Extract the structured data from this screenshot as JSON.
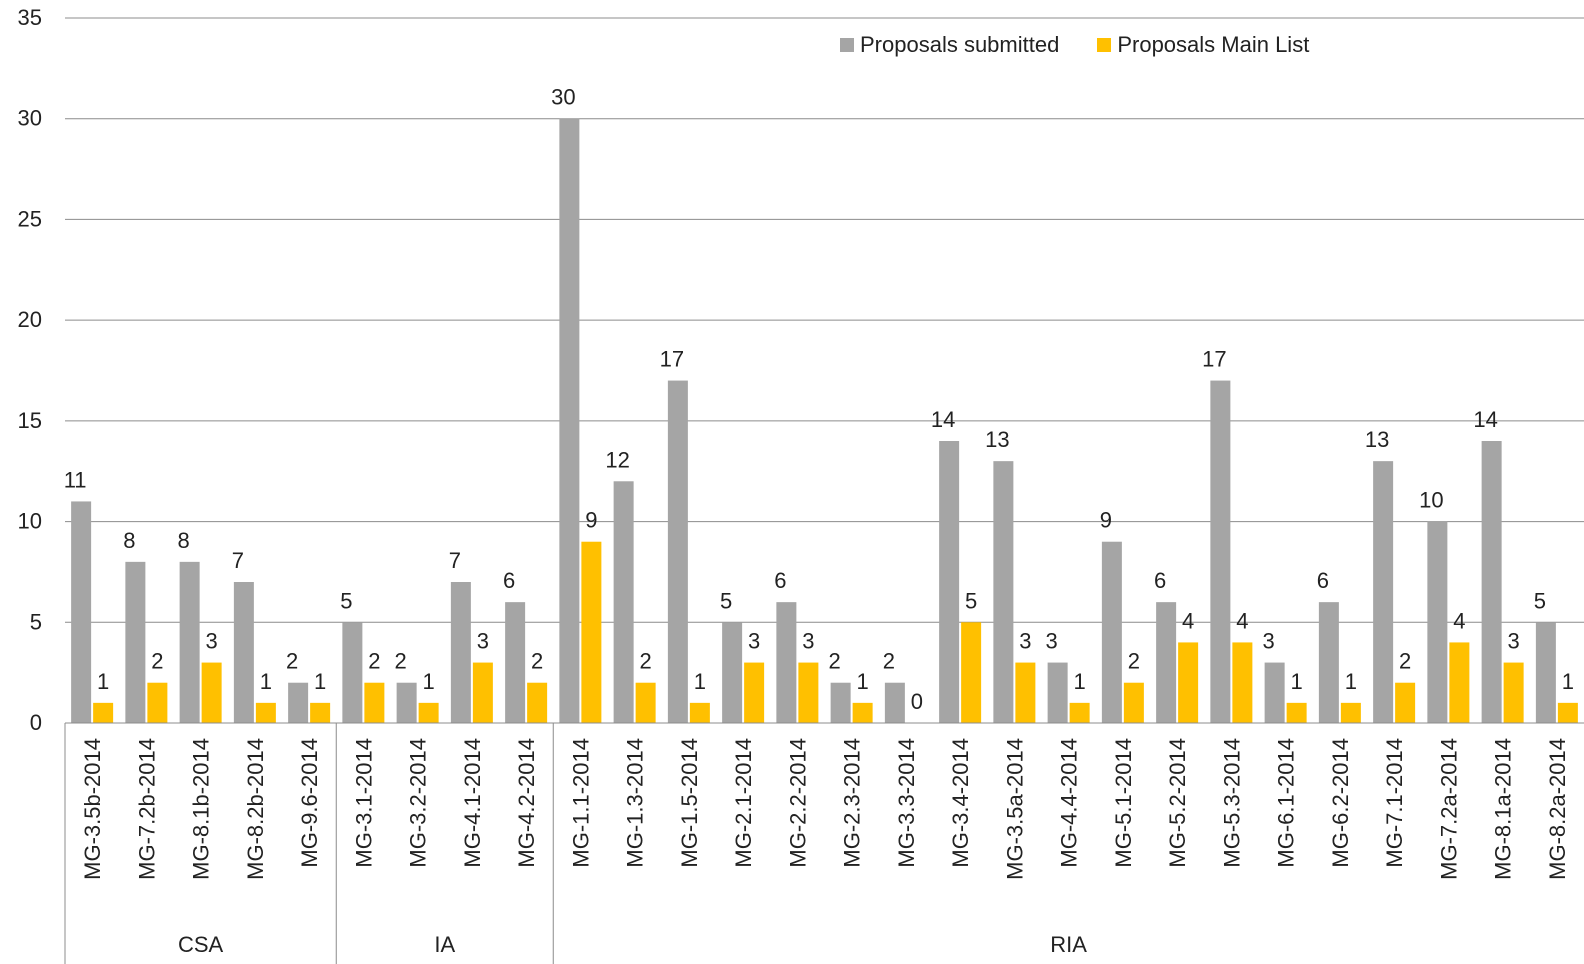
{
  "chart_data": {
    "type": "bar",
    "categories": [
      "MG-3.5b-2014",
      "MG-7.2b-2014",
      "MG-8.1b-2014",
      "MG-8.2b-2014",
      "MG-9.6-2014",
      "MG-3.1-2014",
      "MG-3.2-2014",
      "MG-4.1-2014",
      "MG-4.2-2014",
      "MG-1.1-2014",
      "MG-1.3-2014",
      "MG-1.5-2014",
      "MG-2.1-2014",
      "MG-2.2-2014",
      "MG-2.3-2014",
      "MG-3.3-2014",
      "MG-3.4-2014",
      "MG-3.5a-2014",
      "MG-4.4-2014",
      "MG-5.1-2014",
      "MG-5.2-2014",
      "MG-5.3-2014",
      "MG-6.1-2014",
      "MG-6.2-2014",
      "MG-7.1-2014",
      "MG-7.2a-2014",
      "MG-8.1a-2014",
      "MG-8.2a-2014"
    ],
    "groups": [
      {
        "label": "CSA",
        "count": 5
      },
      {
        "label": "IA",
        "count": 4
      },
      {
        "label": "RIA",
        "count": 19
      }
    ],
    "series": [
      {
        "name": "Proposals submitted",
        "color": "#A5A5A5",
        "values": [
          11,
          8,
          8,
          7,
          2,
          5,
          2,
          7,
          6,
          30,
          12,
          17,
          5,
          6,
          2,
          2,
          14,
          13,
          3,
          9,
          6,
          17,
          3,
          6,
          13,
          10,
          14,
          5
        ]
      },
      {
        "name": "Proposals Main List",
        "color": "#FFC000",
        "values": [
          1,
          2,
          3,
          1,
          1,
          2,
          1,
          3,
          2,
          9,
          2,
          1,
          3,
          3,
          1,
          0,
          5,
          3,
          1,
          2,
          4,
          4,
          1,
          1,
          2,
          4,
          3,
          1
        ]
      }
    ],
    "yticks": [
      0,
      5,
      10,
      15,
      20,
      25,
      30,
      35
    ],
    "ylim": [
      0,
      35
    ],
    "grid": true,
    "legend_position": "top-right"
  }
}
